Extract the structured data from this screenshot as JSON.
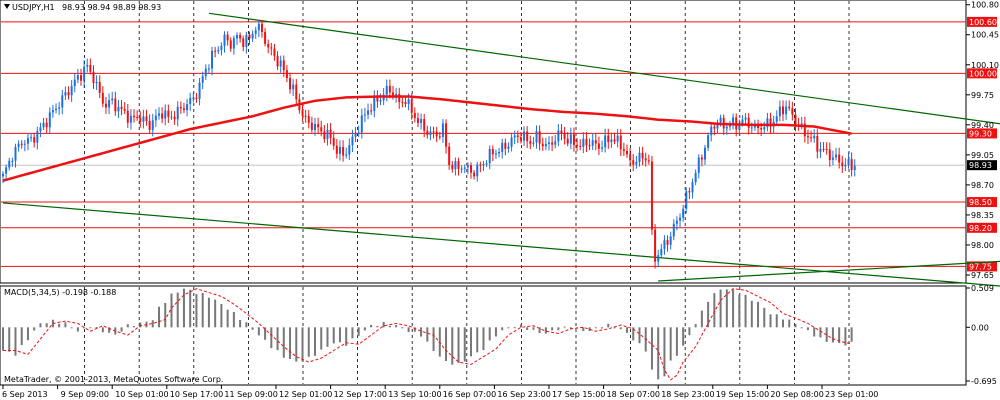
{
  "chart_data": [
    {
      "type": "candlestick",
      "title": "USDJPY,H1",
      "ohlc_header": "98.93 98.94 98.89 98.93",
      "last_price": 98.93,
      "y_ticks": [
        97.65,
        98.0,
        98.35,
        98.7,
        99.05,
        99.4,
        99.75,
        100.1,
        100.45,
        100.8
      ],
      "ylim": [
        97.58,
        100.82
      ],
      "x_labels": [
        "6 Sep 2013",
        "9 Sep 09:00",
        "10 Sep 01:00",
        "10 Sep 17:00",
        "11 Sep 09:00",
        "12 Sep 01:00",
        "12 Sep 17:00",
        "13 Sep 10:00",
        "16 Sep 07:00",
        "16 Sep 23:00",
        "17 Sep 15:00",
        "18 Sep 07:00",
        "18 Sep 23:00",
        "19 Sep 15:00",
        "20 Sep 08:00",
        "23 Sep 01:00"
      ],
      "horizontal_levels": [
        100.6,
        100.0,
        99.3,
        98.5,
        98.2,
        97.75
      ],
      "price_path": [
        [
          0,
          98.8
        ],
        [
          3,
          99.05
        ],
        [
          6,
          99.2
        ],
        [
          9,
          99.22
        ],
        [
          12,
          99.35
        ],
        [
          15,
          99.5
        ],
        [
          18,
          99.65
        ],
        [
          21,
          99.8
        ],
        [
          24,
          99.95
        ],
        [
          27,
          100.08
        ],
        [
          29,
          99.95
        ],
        [
          31,
          99.75
        ],
        [
          33,
          99.62
        ],
        [
          35,
          99.68
        ],
        [
          37,
          99.58
        ],
        [
          39,
          99.55
        ],
        [
          41,
          99.45
        ],
        [
          43,
          99.5
        ],
        [
          45,
          99.45
        ],
        [
          47,
          99.4
        ],
        [
          49,
          99.48
        ],
        [
          51,
          99.55
        ],
        [
          53,
          99.48
        ],
        [
          55,
          99.52
        ],
        [
          57,
          99.58
        ],
        [
          59,
          99.65
        ],
        [
          61,
          99.7
        ],
        [
          63,
          99.85
        ],
        [
          65,
          100.05
        ],
        [
          67,
          100.2
        ],
        [
          69,
          100.3
        ],
        [
          71,
          100.4
        ],
        [
          73,
          100.35
        ],
        [
          75,
          100.42
        ],
        [
          77,
          100.38
        ],
        [
          79,
          100.4
        ],
        [
          81,
          100.55
        ],
        [
          83,
          100.48
        ],
        [
          85,
          100.3
        ],
        [
          87,
          100.2
        ],
        [
          89,
          100.1
        ],
        [
          91,
          99.95
        ],
        [
          93,
          99.8
        ],
        [
          95,
          99.6
        ],
        [
          97,
          99.45
        ],
        [
          99,
          99.4
        ],
        [
          101,
          99.35
        ],
        [
          103,
          99.3
        ],
        [
          105,
          99.25
        ],
        [
          107,
          99.1
        ],
        [
          109,
          99.05
        ],
        [
          111,
          99.15
        ],
        [
          113,
          99.3
        ],
        [
          115,
          99.45
        ],
        [
          117,
          99.58
        ],
        [
          119,
          99.65
        ],
        [
          121,
          99.72
        ],
        [
          123,
          99.8
        ],
        [
          125,
          99.78
        ],
        [
          127,
          99.65
        ],
        [
          129,
          99.7
        ],
        [
          131,
          99.55
        ],
        [
          133,
          99.45
        ],
        [
          135,
          99.35
        ],
        [
          137,
          99.3
        ],
        [
          139,
          99.28
        ],
        [
          141,
          99.35
        ],
        [
          143,
          98.95
        ],
        [
          145,
          98.9
        ],
        [
          147,
          98.92
        ],
        [
          149,
          98.88
        ],
        [
          151,
          98.85
        ],
        [
          153,
          98.92
        ],
        [
          155,
          99.0
        ],
        [
          157,
          99.08
        ],
        [
          159,
          99.1
        ],
        [
          161,
          99.15
        ],
        [
          163,
          99.22
        ],
        [
          165,
          99.28
        ],
        [
          167,
          99.25
        ],
        [
          169,
          99.2
        ],
        [
          171,
          99.25
        ],
        [
          173,
          99.18
        ],
        [
          175,
          99.15
        ],
        [
          177,
          99.25
        ],
        [
          179,
          99.3
        ],
        [
          181,
          99.22
        ],
        [
          183,
          99.2
        ],
        [
          185,
          99.15
        ],
        [
          187,
          99.2
        ],
        [
          189,
          99.18
        ],
        [
          191,
          99.15
        ],
        [
          193,
          99.2
        ],
        [
          195,
          99.25
        ],
        [
          197,
          99.2
        ],
        [
          199,
          99.12
        ],
        [
          201,
          98.95
        ],
        [
          203,
          99.0
        ],
        [
          205,
          99.02
        ],
        [
          207,
          99.0
        ],
        [
          208,
          98.1
        ],
        [
          209,
          97.85
        ],
        [
          211,
          97.95
        ],
        [
          213,
          98.05
        ],
        [
          215,
          98.2
        ],
        [
          217,
          98.35
        ],
        [
          219,
          98.55
        ],
        [
          221,
          98.75
        ],
        [
          223,
          98.95
        ],
        [
          225,
          99.15
        ],
        [
          227,
          99.35
        ],
        [
          229,
          99.45
        ],
        [
          231,
          99.38
        ],
        [
          233,
          99.42
        ],
        [
          235,
          99.4
        ],
        [
          237,
          99.45
        ],
        [
          239,
          99.42
        ],
        [
          241,
          99.35
        ],
        [
          243,
          99.38
        ],
        [
          245,
          99.4
        ],
        [
          247,
          99.45
        ],
        [
          249,
          99.55
        ],
        [
          251,
          99.62
        ],
        [
          253,
          99.5
        ],
        [
          255,
          99.4
        ],
        [
          257,
          99.3
        ],
        [
          259,
          99.25
        ],
        [
          261,
          99.15
        ],
        [
          263,
          99.1
        ],
        [
          265,
          99.05
        ],
        [
          267,
          99.0
        ],
        [
          269,
          98.95
        ],
        [
          271,
          98.93
        ],
        [
          273,
          98.93
        ]
      ],
      "moving_average": [
        [
          0,
          98.75
        ],
        [
          20,
          98.95
        ],
        [
          40,
          99.15
        ],
        [
          60,
          99.35
        ],
        [
          80,
          99.5
        ],
        [
          90,
          99.6
        ],
        [
          100,
          99.68
        ],
        [
          110,
          99.72
        ],
        [
          120,
          99.73
        ],
        [
          130,
          99.73
        ],
        [
          140,
          99.7
        ],
        [
          150,
          99.66
        ],
        [
          160,
          99.62
        ],
        [
          170,
          99.58
        ],
        [
          180,
          99.55
        ],
        [
          190,
          99.53
        ],
        [
          200,
          99.5
        ],
        [
          210,
          99.46
        ],
        [
          220,
          99.44
        ],
        [
          230,
          99.41
        ],
        [
          240,
          99.4
        ],
        [
          250,
          99.4
        ],
        [
          260,
          99.38
        ],
        [
          273,
          99.29
        ]
      ],
      "trendlines": [
        [
          [
            0,
            98.49
          ],
          [
            320,
            97.52
          ]
        ],
        [
          [
            66,
            100.7
          ],
          [
            320,
            99.41
          ]
        ],
        [
          [
            210,
            97.58
          ],
          [
            320,
            97.81
          ]
        ]
      ]
    },
    {
      "type": "bar",
      "title": "MACD(5,34,5) -0.198 -0.188",
      "y_ticks": [
        0.509,
        0.0,
        -0.695
      ],
      "ylim": [
        -0.695,
        0.509
      ],
      "macd_path": [
        [
          0,
          -0.3
        ],
        [
          4,
          -0.35
        ],
        [
          8,
          -0.15
        ],
        [
          12,
          0.05
        ],
        [
          16,
          0.08
        ],
        [
          20,
          0.05
        ],
        [
          24,
          -0.05
        ],
        [
          28,
          0.02
        ],
        [
          32,
          -0.05
        ],
        [
          36,
          -0.1
        ],
        [
          40,
          0.02
        ],
        [
          44,
          0.05
        ],
        [
          48,
          0.1
        ],
        [
          50,
          0.25
        ],
        [
          54,
          0.42
        ],
        [
          58,
          0.5
        ],
        [
          62,
          0.45
        ],
        [
          66,
          0.4
        ],
        [
          70,
          0.3
        ],
        [
          74,
          0.18
        ],
        [
          78,
          0.05
        ],
        [
          82,
          -0.1
        ],
        [
          86,
          -0.25
        ],
        [
          90,
          -0.38
        ],
        [
          94,
          -0.45
        ],
        [
          98,
          -0.4
        ],
        [
          102,
          -0.3
        ],
        [
          106,
          -0.2
        ],
        [
          110,
          -0.22
        ],
        [
          114,
          -0.1
        ],
        [
          118,
          0.02
        ],
        [
          122,
          0.05
        ],
        [
          126,
          0.02
        ],
        [
          130,
          -0.05
        ],
        [
          134,
          -0.1
        ],
        [
          138,
          -0.3
        ],
        [
          142,
          -0.45
        ],
        [
          146,
          -0.48
        ],
        [
          150,
          -0.38
        ],
        [
          154,
          -0.28
        ],
        [
          158,
          -0.1
        ],
        [
          162,
          0.0
        ],
        [
          166,
          0.02
        ],
        [
          170,
          -0.05
        ],
        [
          174,
          -0.08
        ],
        [
          178,
          -0.02
        ],
        [
          182,
          0.0
        ],
        [
          186,
          -0.05
        ],
        [
          190,
          -0.02
        ],
        [
          194,
          0.03
        ],
        [
          198,
          -0.02
        ],
        [
          202,
          -0.15
        ],
        [
          206,
          -0.3
        ],
        [
          208,
          -0.55
        ],
        [
          210,
          -0.68
        ],
        [
          212,
          -0.62
        ],
        [
          214,
          -0.45
        ],
        [
          218,
          -0.25
        ],
        [
          222,
          0.05
        ],
        [
          226,
          0.35
        ],
        [
          230,
          0.5
        ],
        [
          234,
          0.48
        ],
        [
          238,
          0.4
        ],
        [
          242,
          0.32
        ],
        [
          246,
          0.18
        ],
        [
          250,
          0.12
        ],
        [
          254,
          0.05
        ],
        [
          258,
          -0.05
        ],
        [
          262,
          -0.15
        ],
        [
          266,
          -0.2
        ],
        [
          270,
          -0.22
        ],
        [
          273,
          -0.2
        ]
      ]
    }
  ],
  "footer": "MetaTrader, © 2001-2013, MetaQuotes Software Corp."
}
